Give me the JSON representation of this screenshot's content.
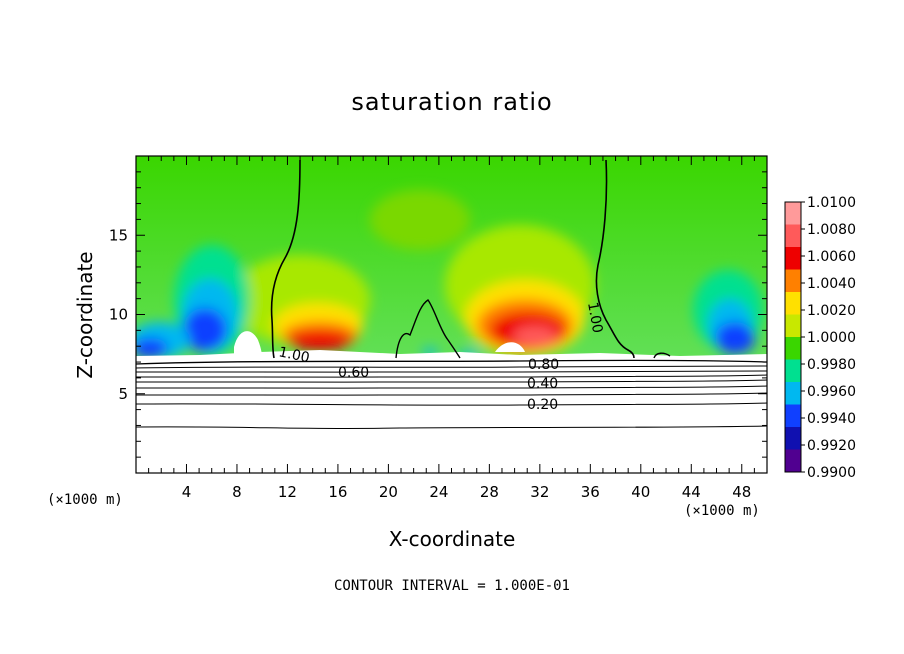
{
  "chart_data": {
    "type": "heatmap",
    "title": "saturation ratio",
    "xlabel": "X-coordinate",
    "ylabel": "Z-coordinate",
    "x_unit": "(×1000 m)",
    "z_unit": "(×1000 m)",
    "xlim": [
      0,
      50
    ],
    "ylim": [
      0,
      20
    ],
    "x_ticks": [
      4,
      8,
      12,
      16,
      20,
      24,
      28,
      32,
      36,
      40,
      44,
      48
    ],
    "y_ticks": [
      5,
      10,
      15
    ],
    "colorbar": {
      "levels": [
        "1.0100",
        "1.0080",
        "1.0060",
        "1.0040",
        "1.0020",
        "1.0000",
        "0.9980",
        "0.9960",
        "0.9940",
        "0.9920",
        "0.9900"
      ],
      "colors": [
        "#ff9a9a",
        "#ff5a5a",
        "#ee0000",
        "#ff8000",
        "#ffe000",
        "#c8e800",
        "#3ad600",
        "#00e090",
        "#00b8f0",
        "#1040ff",
        "#1010b0",
        "#500090"
      ]
    },
    "contour_labels": [
      "1.00",
      "1.00",
      "0.80",
      "0.60",
      "0.40",
      "0.20"
    ],
    "contour_interval_text": "CONTOUR INTERVAL = 1.000E-01"
  }
}
